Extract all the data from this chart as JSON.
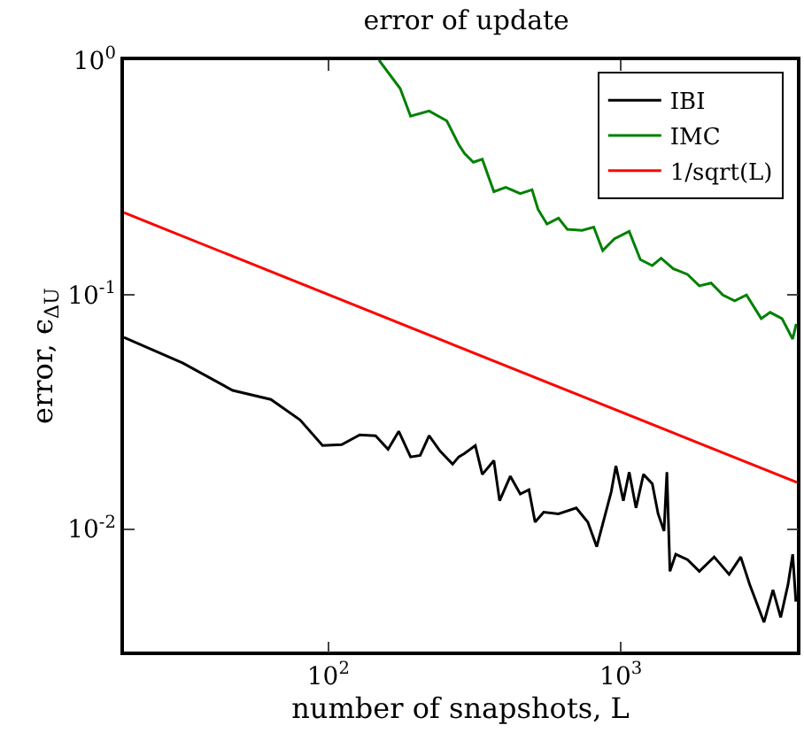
{
  "chart_data": {
    "type": "line",
    "title": "error of update",
    "xlabel": "number of snapshots, L",
    "ylabel": "error, ϵ$_{ΔU}$",
    "log": "xy",
    "legend": "top right",
    "xlim": [
      20,
      4000
    ],
    "ylim": [
      0.003,
      1
    ],
    "xticks": [
      {
        "value": 100,
        "label": "10$^{2}$"
      },
      {
        "value": 1000,
        "label": "10$^{3}$"
      }
    ],
    "yticks": [
      {
        "value": 0.01,
        "label": "10$^{-2}$"
      },
      {
        "value": 0.1,
        "label": "10$^{-1}$"
      },
      {
        "value": 1,
        "label": "10$^{0}$"
      }
    ],
    "series": [
      {
        "name": "IBI",
        "color": "#000000",
        "x": [
          20,
          31.8,
          47.1,
          63.6,
          80,
          95.5,
          111,
          128,
          145,
          160,
          174,
          191,
          206,
          221,
          241,
          266,
          279,
          292,
          318,
          336,
          368,
          385,
          419,
          453,
          485,
          509,
          545,
          612,
          704,
          771,
          827,
          927,
          962,
          1020,
          1068,
          1127,
          1195,
          1281,
          1341,
          1405,
          1437,
          1472,
          1541,
          1690,
          1855,
          2085,
          2346,
          2570,
          2758,
          3087,
          3313,
          3520,
          3730,
          3869,
          3968
        ],
        "values": [
          0.0657,
          0.051,
          0.039,
          0.0357,
          0.0292,
          0.0227,
          0.0229,
          0.0252,
          0.025,
          0.0219,
          0.0261,
          0.0203,
          0.0206,
          0.025,
          0.0215,
          0.0189,
          0.0203,
          0.021,
          0.0227,
          0.0171,
          0.0196,
          0.0132,
          0.0168,
          0.0141,
          0.0147,
          0.0107,
          0.0118,
          0.0116,
          0.0123,
          0.0107,
          0.0084,
          0.0144,
          0.0186,
          0.0132,
          0.0175,
          0.0123,
          0.0171,
          0.0156,
          0.0116,
          0.0098,
          0.0175,
          0.0066,
          0.0078,
          0.0074,
          0.0066,
          0.0076,
          0.0064,
          0.0076,
          0.0058,
          0.004,
          0.0055,
          0.0042,
          0.0058,
          0.0078,
          0.0049
        ]
      },
      {
        "name": "IMC",
        "color": "#008000",
        "x": [
          149,
          176,
          191,
          221,
          254,
          279,
          292,
          313,
          336,
          368,
          404,
          453,
          497,
          521,
          559,
          612,
          656,
          737,
          808,
          867,
          951,
          1068,
          1166,
          1281,
          1373,
          1509,
          1690,
          1855,
          2035,
          2234,
          2451,
          2689,
          3020,
          3240,
          3556,
          3869,
          3980
        ],
        "values": [
          1.0,
          0.757,
          0.577,
          0.607,
          0.551,
          0.437,
          0.4,
          0.367,
          0.378,
          0.275,
          0.287,
          0.27,
          0.28,
          0.231,
          0.2,
          0.212,
          0.19,
          0.188,
          0.194,
          0.154,
          0.173,
          0.186,
          0.141,
          0.133,
          0.143,
          0.129,
          0.122,
          0.109,
          0.112,
          0.0996,
          0.094,
          0.0996,
          0.079,
          0.084,
          0.079,
          0.0646,
          0.075
        ]
      },
      {
        "name": "1/sqrt(L)",
        "color": "#ff0000",
        "x": [
          20,
          4000
        ],
        "values": [
          0.2236,
          0.0158
        ]
      }
    ]
  }
}
